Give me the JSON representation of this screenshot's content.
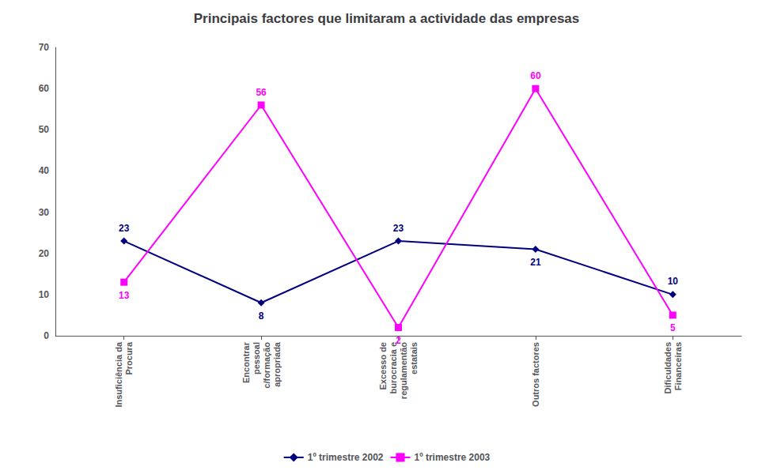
{
  "chart_data": {
    "type": "line",
    "title": "Principais factores que limitaram a actividade das empresas",
    "categories": [
      "Insuficiência da\nProcura",
      "Encontrar\npessoal\nc/formação\napropriada",
      "Excesso de\nburocracia e\nregulamentão\nestatais",
      "Outros factores",
      "Dificuldades\nFinanceiras"
    ],
    "series": [
      {
        "name": "1º trimestre 2002",
        "color": "#000080",
        "marker": "diamond",
        "values": [
          23,
          8,
          23,
          21,
          10
        ]
      },
      {
        "name": "1º trimestre 2003",
        "color": "#FF00FF",
        "marker": "square",
        "values": [
          13,
          56,
          2,
          60,
          5
        ]
      }
    ],
    "ylim": [
      0,
      70
    ],
    "yticks": [
      0,
      10,
      20,
      30,
      40,
      50,
      60,
      70
    ],
    "grid": false,
    "legend": "bottom",
    "data_labels": true
  }
}
